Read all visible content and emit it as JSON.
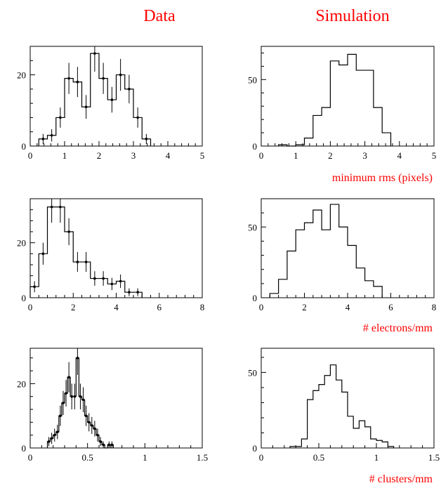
{
  "headers": {
    "left": "Data",
    "right": "Simulation"
  },
  "colors": {
    "header": "#ff0000",
    "caption": "#ff0000",
    "line": "#000000"
  },
  "chart_data": [
    {
      "type": "bar",
      "panel": "data",
      "row": 0,
      "xlim": [
        0,
        5
      ],
      "ylim": [
        0,
        28
      ],
      "xticks": [
        0,
        1,
        2,
        3,
        4,
        5
      ],
      "xtick_labels": [
        "0",
        "1",
        "2",
        "3",
        "4",
        "5"
      ],
      "yticks": [
        0,
        20
      ],
      "ytick_labels": [
        "0",
        "20"
      ],
      "bin_edges": [
        0,
        0.25,
        0.5,
        0.75,
        1.0,
        1.25,
        1.5,
        1.75,
        2.0,
        2.25,
        2.5,
        2.75,
        3.0,
        3.25,
        3.5,
        3.75,
        4.0,
        4.25,
        4.5,
        4.75,
        5.0
      ],
      "values": [
        0,
        2,
        3,
        8,
        19,
        18,
        11,
        26,
        19,
        13,
        20,
        16,
        8,
        2,
        0,
        0,
        0,
        0,
        0,
        0
      ],
      "errors": true,
      "caption": ""
    },
    {
      "type": "bar",
      "panel": "simulation",
      "row": 0,
      "xlim": [
        0,
        5
      ],
      "ylim": [
        0,
        75
      ],
      "xticks": [
        0,
        1,
        2,
        3,
        4,
        5
      ],
      "xtick_labels": [
        "0",
        "1",
        "2",
        "3",
        "4",
        "5"
      ],
      "yticks": [
        0,
        50
      ],
      "ytick_labels": [
        "0",
        "50"
      ],
      "bin_edges": [
        0,
        0.25,
        0.5,
        0.75,
        1.0,
        1.25,
        1.5,
        1.75,
        2.0,
        2.25,
        2.5,
        2.75,
        3.0,
        3.25,
        3.5,
        3.75,
        4.0,
        4.25,
        4.5,
        4.75,
        5.0
      ],
      "values": [
        0,
        0,
        1,
        0,
        1,
        6,
        23,
        29,
        64,
        61,
        69,
        57,
        57,
        29,
        10,
        0,
        0,
        0,
        0,
        0
      ],
      "errors": false,
      "caption": "minimum rms (pixels)"
    },
    {
      "type": "bar",
      "panel": "data",
      "row": 1,
      "xlim": [
        0,
        8
      ],
      "ylim": [
        0,
        36
      ],
      "xticks": [
        0,
        2,
        4,
        6,
        8
      ],
      "xtick_labels": [
        "0",
        "2",
        "4",
        "6",
        "8"
      ],
      "yticks": [
        0,
        20
      ],
      "ytick_labels": [
        "0",
        "20"
      ],
      "bin_edges": [
        0,
        0.4,
        0.8,
        1.2,
        1.6,
        2.0,
        2.4,
        2.8,
        3.2,
        3.6,
        4.0,
        4.4,
        4.8,
        5.2,
        5.6,
        6.0,
        6.4,
        6.8,
        7.2,
        7.6,
        8.0
      ],
      "values": [
        4,
        16,
        33,
        33,
        24,
        13,
        13,
        7,
        7,
        5,
        6,
        2,
        2,
        0,
        0,
        0,
        0,
        0,
        0,
        0
      ],
      "errors": true,
      "caption": ""
    },
    {
      "type": "bar",
      "panel": "simulation",
      "row": 1,
      "xlim": [
        0,
        8
      ],
      "ylim": [
        0,
        70
      ],
      "xticks": [
        0,
        2,
        4,
        6,
        8
      ],
      "xtick_labels": [
        "0",
        "2",
        "4",
        "6",
        "8"
      ],
      "yticks": [
        0,
        50
      ],
      "ytick_labels": [
        "0",
        "50"
      ],
      "bin_edges": [
        0,
        0.4,
        0.8,
        1.2,
        1.6,
        2.0,
        2.4,
        2.8,
        3.2,
        3.6,
        4.0,
        4.4,
        4.8,
        5.2,
        5.6,
        6.0,
        6.4,
        6.8,
        7.2,
        7.6,
        8.0
      ],
      "values": [
        0,
        3,
        13,
        33,
        48,
        53,
        62,
        48,
        66,
        50,
        37,
        21,
        12,
        8,
        0,
        0,
        0,
        0,
        0,
        0
      ],
      "errors": false,
      "caption": "# electrons/mm"
    },
    {
      "type": "bar",
      "panel": "data",
      "row": 2,
      "xlim": [
        0,
        1.5
      ],
      "ylim": [
        0,
        31
      ],
      "xticks": [
        0,
        0.5,
        1,
        1.5
      ],
      "xtick_labels": [
        "0",
        "0.5",
        "1",
        "1.5"
      ],
      "yticks": [
        0,
        20
      ],
      "ytick_labels": [
        "0",
        "20"
      ],
      "bin_edges": [
        0,
        0.025,
        0.05,
        0.075,
        0.1,
        0.125,
        0.15,
        0.175,
        0.2,
        0.225,
        0.25,
        0.275,
        0.3,
        0.325,
        0.35,
        0.375,
        0.4,
        0.425,
        0.45,
        0.475,
        0.5,
        0.525,
        0.55,
        0.575,
        0.6,
        0.625,
        0.65,
        0.675,
        0.7,
        0.725,
        0.75,
        0.775,
        0.8,
        0.825,
        0.85,
        0.875,
        0.9,
        0.925,
        0.95,
        0.975,
        1.0
      ],
      "values": [
        0,
        0,
        0,
        0,
        0,
        0,
        2,
        3,
        4,
        5,
        10,
        14,
        17,
        22,
        16,
        16,
        28,
        16,
        15,
        10,
        8,
        7,
        6,
        4,
        2,
        1,
        0,
        1,
        1,
        0,
        0,
        0,
        0,
        0,
        0,
        0,
        0,
        0,
        0,
        0
      ],
      "errors": true,
      "caption": ""
    },
    {
      "type": "bar",
      "panel": "simulation",
      "row": 2,
      "xlim": [
        0,
        1.5
      ],
      "ylim": [
        0,
        66
      ],
      "xticks": [
        0,
        0.5,
        1,
        1.5
      ],
      "xtick_labels": [
        "0",
        "0.5",
        "1",
        "1.5"
      ],
      "yticks": [
        0,
        50
      ],
      "ytick_labels": [
        "0",
        "50"
      ],
      "bin_edges": [
        0,
        0.05,
        0.1,
        0.15,
        0.2,
        0.25,
        0.3,
        0.35,
        0.4,
        0.45,
        0.5,
        0.55,
        0.6,
        0.65,
        0.7,
        0.75,
        0.8,
        0.85,
        0.9,
        0.95,
        1.0,
        1.05,
        1.1,
        1.15,
        1.2,
        1.25,
        1.3,
        1.35,
        1.4,
        1.45,
        1.5
      ],
      "values": [
        0,
        0,
        0,
        0,
        0,
        1,
        1,
        6,
        32,
        38,
        42,
        48,
        55,
        45,
        37,
        21,
        13,
        18,
        14,
        6,
        5,
        4,
        1,
        0,
        0,
        0,
        0,
        0,
        0,
        0
      ],
      "errors": false,
      "caption": "# clusters/mm"
    }
  ]
}
